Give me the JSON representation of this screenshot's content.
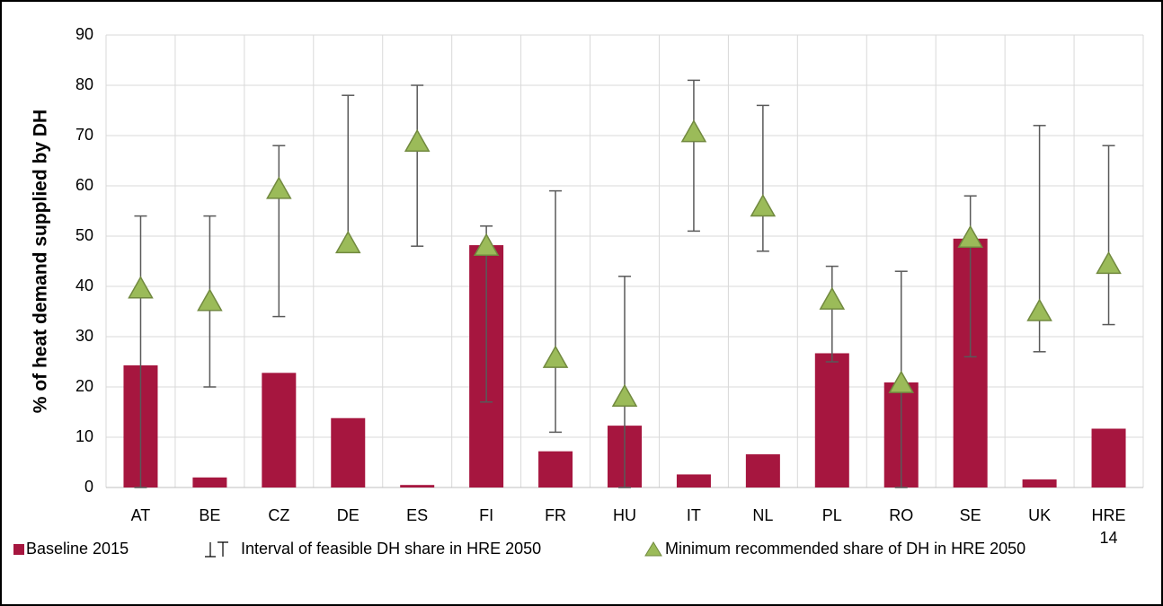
{
  "chart_data": {
    "type": "bar",
    "y_axis_label": "% of heat demand supplied by DH",
    "categories": [
      "AT",
      "BE",
      "CZ",
      "DE",
      "ES",
      "FI",
      "FR",
      "HU",
      "IT",
      "NL",
      "PL",
      "RO",
      "SE",
      "UK",
      "HRE\n14"
    ],
    "ylim": [
      0,
      90
    ],
    "yticks": [
      0,
      10,
      20,
      30,
      40,
      50,
      60,
      70,
      80,
      90
    ],
    "grid": true,
    "legend": "bottom",
    "series": [
      {
        "name": "Baseline 2015",
        "color": "#a6163f",
        "type": "bar",
        "values": [
          24.3,
          2,
          22.8,
          13.8,
          0.5,
          48.2,
          7.2,
          12.3,
          2.6,
          6.6,
          26.7,
          20.9,
          49.5,
          1.6,
          11.7
        ]
      },
      {
        "name": "Interval of feasible DH share in HRE 2050",
        "color": "#595959",
        "type": "interval",
        "low": [
          0,
          20,
          34,
          48,
          48,
          17,
          11,
          0,
          51,
          47,
          25,
          0,
          26,
          27,
          32.4
        ],
        "high": [
          54,
          54,
          68,
          78,
          80,
          52,
          59,
          42,
          81,
          76,
          44,
          43,
          58,
          72,
          68
        ]
      },
      {
        "name": "Minimum recommended share of DH in HRE 2050",
        "color": "#9bbb59",
        "type": "triangle",
        "values": [
          39.5,
          37,
          59.3,
          48.5,
          68.7,
          48,
          25.7,
          18,
          70.6,
          55.8,
          37.3,
          20.7,
          49.6,
          35,
          44.4
        ]
      }
    ]
  }
}
